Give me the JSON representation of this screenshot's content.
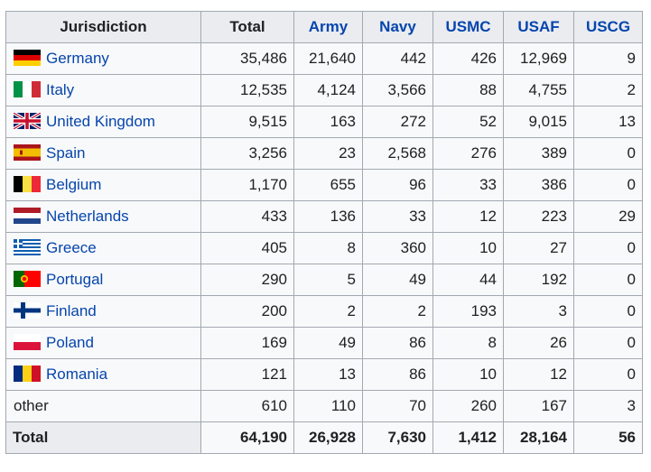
{
  "headers": {
    "jurisdiction": "Jurisdiction",
    "total": "Total",
    "army": "Army",
    "navy": "Navy",
    "usmc": "USMC",
    "usaf": "USAF",
    "uscg": "USCG"
  },
  "rows": [
    {
      "name": "Germany",
      "flag": "de-flag-icon",
      "total": "35,486",
      "army": "21,640",
      "navy": "442",
      "usmc": "426",
      "usaf": "12,969",
      "uscg": "9"
    },
    {
      "name": "Italy",
      "flag": "it-flag-icon",
      "total": "12,535",
      "army": "4,124",
      "navy": "3,566",
      "usmc": "88",
      "usaf": "4,755",
      "uscg": "2"
    },
    {
      "name": "United Kingdom",
      "flag": "uk-flag-icon",
      "total": "9,515",
      "army": "163",
      "navy": "272",
      "usmc": "52",
      "usaf": "9,015",
      "uscg": "13"
    },
    {
      "name": "Spain",
      "flag": "es-flag-icon",
      "total": "3,256",
      "army": "23",
      "navy": "2,568",
      "usmc": "276",
      "usaf": "389",
      "uscg": "0"
    },
    {
      "name": "Belgium",
      "flag": "be-flag-icon",
      "total": "1,170",
      "army": "655",
      "navy": "96",
      "usmc": "33",
      "usaf": "386",
      "uscg": "0"
    },
    {
      "name": "Netherlands",
      "flag": "nl-flag-icon",
      "total": "433",
      "army": "136",
      "navy": "33",
      "usmc": "12",
      "usaf": "223",
      "uscg": "29"
    },
    {
      "name": "Greece",
      "flag": "gr-flag-icon",
      "total": "405",
      "army": "8",
      "navy": "360",
      "usmc": "10",
      "usaf": "27",
      "uscg": "0"
    },
    {
      "name": "Portugal",
      "flag": "pt-flag-icon",
      "total": "290",
      "army": "5",
      "navy": "49",
      "usmc": "44",
      "usaf": "192",
      "uscg": "0"
    },
    {
      "name": "Finland",
      "flag": "fi-flag-icon",
      "total": "200",
      "army": "2",
      "navy": "2",
      "usmc": "193",
      "usaf": "3",
      "uscg": "0"
    },
    {
      "name": "Poland",
      "flag": "pl-flag-icon",
      "total": "169",
      "army": "49",
      "navy": "86",
      "usmc": "8",
      "usaf": "26",
      "uscg": "0"
    },
    {
      "name": "Romania",
      "flag": "ro-flag-icon",
      "total": "121",
      "army": "13",
      "navy": "86",
      "usmc": "10",
      "usaf": "12",
      "uscg": "0"
    }
  ],
  "other": {
    "name": "other",
    "total": "610",
    "army": "110",
    "navy": "70",
    "usmc": "260",
    "usaf": "167",
    "uscg": "3"
  },
  "totals": {
    "name": "Total",
    "total": "64,190",
    "army": "26,928",
    "navy": "7,630",
    "usmc": "1,412",
    "usaf": "28,164",
    "uscg": "56"
  },
  "colors": {
    "link": "#0645ad",
    "header_bg": "#eaecf0",
    "cell_bg": "#f8f9fa",
    "border": "#a2a9b1"
  }
}
